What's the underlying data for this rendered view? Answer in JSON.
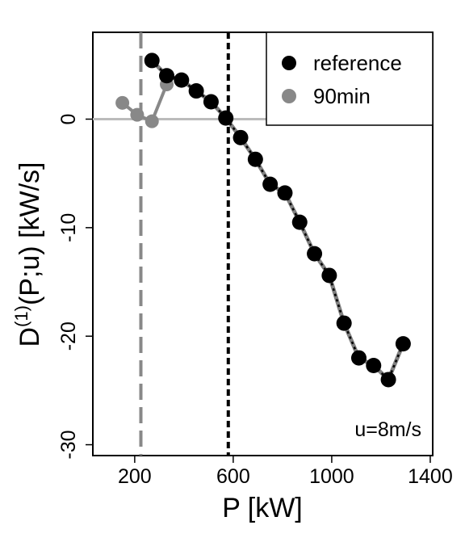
{
  "chart_data": {
    "type": "line",
    "xlabel": "P [kW]",
    "ylabel": {
      "base": "D",
      "sup": "(1)",
      "rest": "(P;u) [kW/s]"
    },
    "xlim": [
      30,
      1410
    ],
    "ylim": [
      -31,
      8
    ],
    "x_ticks": [
      200,
      600,
      1000,
      1400
    ],
    "x_tick_labels": [
      "200",
      "600",
      "1000",
      "1400"
    ],
    "y_ticks": [
      0,
      -10,
      -20,
      -30
    ],
    "y_tick_labels": [
      "0",
      "-10",
      "-20",
      "-30"
    ],
    "grid": false,
    "legend": {
      "position": "top-right",
      "entries": [
        "reference",
        "90min"
      ]
    },
    "annotation": "u=8m/s",
    "series": [
      {
        "name": "reference",
        "color": "#000000",
        "line_color": "#808080",
        "x": [
          270,
          330,
          390,
          450,
          510,
          570,
          630,
          690,
          750,
          810,
          870,
          930,
          990,
          1050,
          1110,
          1170,
          1230,
          1290
        ],
        "y": [
          5.4,
          4.0,
          3.6,
          2.6,
          1.6,
          0.1,
          -1.7,
          -3.7,
          -6.0,
          -6.8,
          -9.5,
          -12.4,
          -14.4,
          -18.8,
          -22.0,
          -22.7,
          -24.0,
          -20.7
        ]
      },
      {
        "name": "90min",
        "color": "#888888",
        "x": [
          150,
          210,
          270,
          330
        ],
        "y": [
          1.5,
          0.4,
          -0.2,
          3.2
        ]
      }
    ],
    "reference_lines": {
      "horizontal_y": 0,
      "horizontal_color": "#bbbbbb",
      "vertical": [
        {
          "x": 225,
          "color": "#888888",
          "style": "long-dash"
        },
        {
          "x": 580,
          "color": "#000000",
          "style": "short-dash"
        }
      ]
    }
  }
}
